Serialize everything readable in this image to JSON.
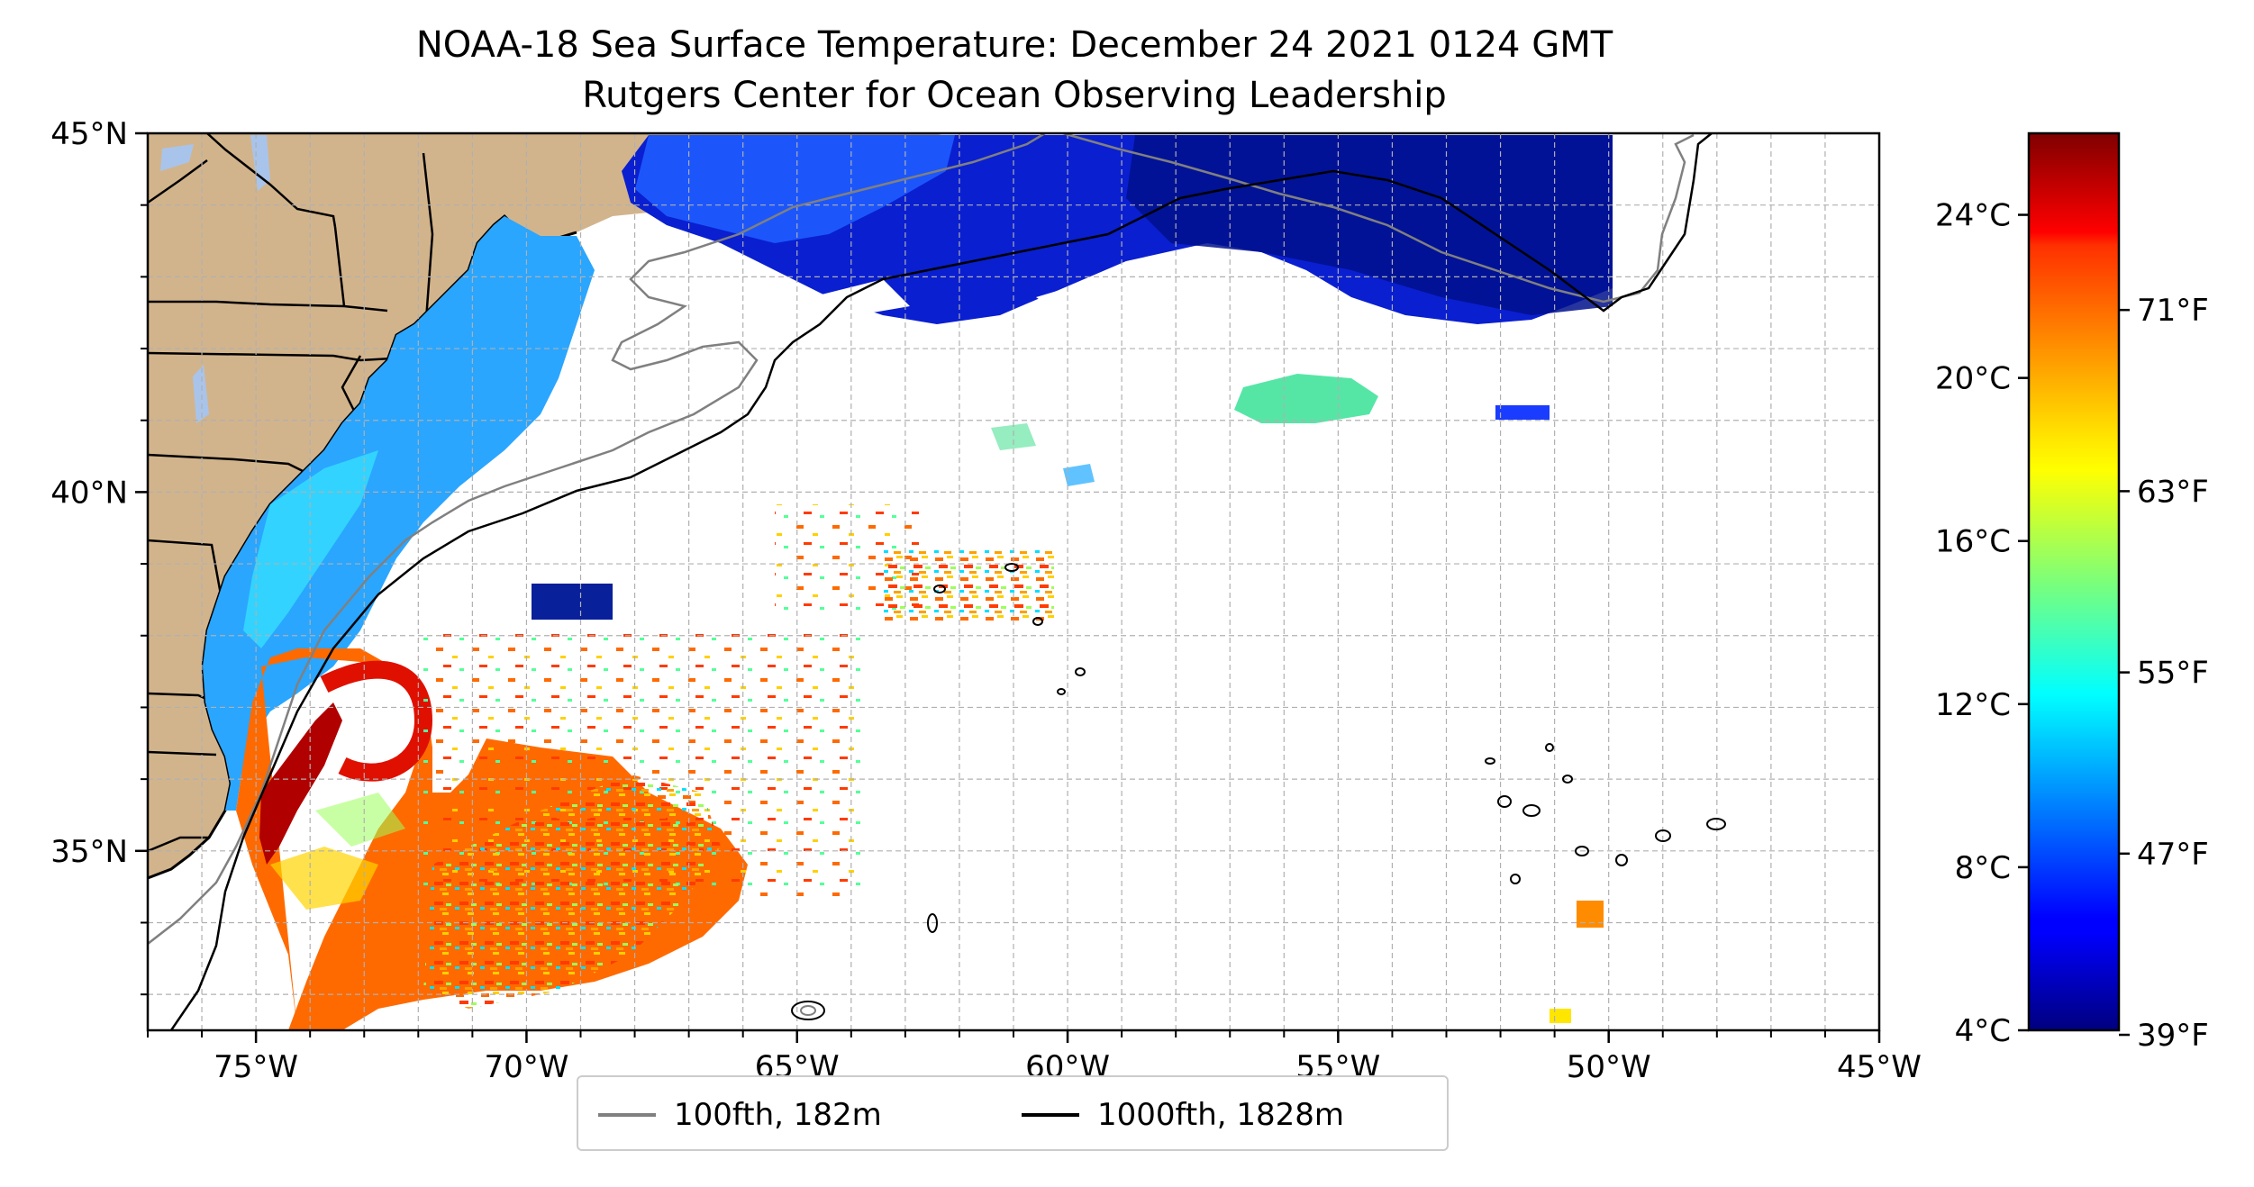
{
  "title": "NOAA-18 Sea Surface Temperature: December 24 2021 0124 GMT",
  "subtitle": "Rutgers Center for Ocean Observing Leadership",
  "map": {
    "lon_range": [
      -77,
      -45
    ],
    "lat_range": [
      32.5,
      45
    ],
    "lon_ticks": [
      "75°W",
      "70°W",
      "65°W",
      "60°W",
      "55°W",
      "50°W",
      "45°W"
    ],
    "lat_ticks": [
      "35°N",
      "40°N",
      "45°N"
    ],
    "grid": true,
    "colors": {
      "land": "#d2b48c",
      "lakes": "#a9c4ea",
      "isobath_100": "#808080",
      "isobath_1000": "#000000"
    }
  },
  "colorbar": {
    "colormap": "jet",
    "range_c": [
      4,
      26
    ],
    "celsius_ticks": [
      "4°C",
      "8°C",
      "12°C",
      "16°C",
      "20°C",
      "24°C"
    ],
    "fahrenheit_ticks": [
      "39°F",
      "47°F",
      "55°F",
      "63°F",
      "71°F"
    ]
  },
  "legend": {
    "items": [
      {
        "label": "100fth, 182m",
        "color": "#808080"
      },
      {
        "label": "1000fth, 1828m",
        "color": "#000000"
      }
    ]
  }
}
